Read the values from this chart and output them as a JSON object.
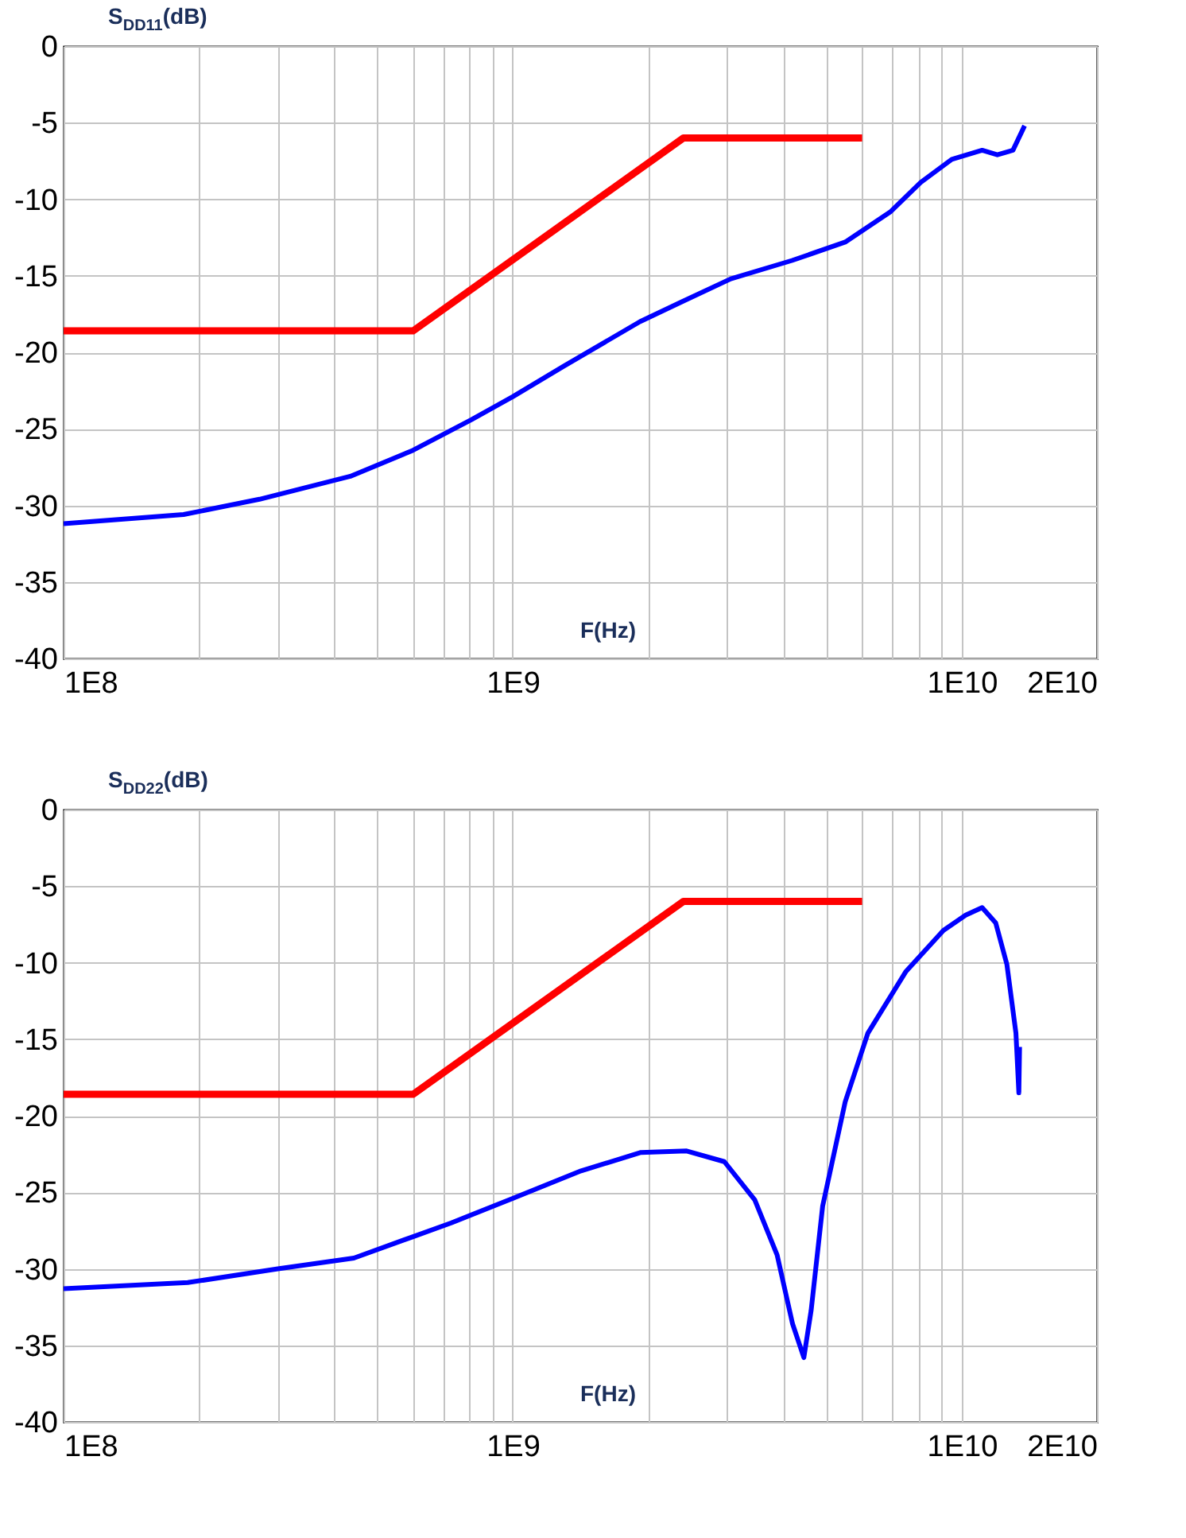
{
  "chart_data": [
    {
      "type": "line",
      "ylabel": "S$_{DD11}$(dB)",
      "xlabel": "F(Hz)",
      "log": "x",
      "grid": true,
      "line_style": "solid",
      "marker": "none",
      "xlim": [
        100000000.0,
        20000000000.0
      ],
      "ylim": [
        -40,
        0
      ],
      "yticks": [
        -40,
        -35,
        -30,
        -25,
        -20,
        -15,
        -10,
        -5,
        0
      ],
      "xticks": [
        {
          "value": 100000000.0,
          "label": "1E8"
        },
        {
          "value": 200000000.0,
          "label": null
        },
        {
          "value": 300000000.0,
          "label": null
        },
        {
          "value": 400000000.0,
          "label": null
        },
        {
          "value": 500000000.0,
          "label": null
        },
        {
          "value": 600000000.0,
          "label": null
        },
        {
          "value": 700000000.0,
          "label": null
        },
        {
          "value": 800000000.0,
          "label": null
        },
        {
          "value": 900000000.0,
          "label": null
        },
        {
          "value": 1000000000.0,
          "label": "1E9"
        },
        {
          "value": 2000000000.0,
          "label": null
        },
        {
          "value": 3000000000.0,
          "label": null
        },
        {
          "value": 4000000000.0,
          "label": null
        },
        {
          "value": 5000000000.0,
          "label": null
        },
        {
          "value": 6000000000.0,
          "label": null
        },
        {
          "value": 7000000000.0,
          "label": null
        },
        {
          "value": 8000000000.0,
          "label": null
        },
        {
          "value": 9000000000.0,
          "label": null
        },
        {
          "value": 10000000000.0,
          "label": "1E10"
        },
        {
          "value": 20000000000.0,
          "label": "2E10"
        }
      ],
      "series": [
        {
          "color": "#ff0000",
          "x": [
            100000000.0,
            600000000.0,
            2400000000.0,
            6000000000.0
          ],
          "values": [
            -18.6,
            -18.6,
            -6,
            -6
          ]
        },
        {
          "color": "#0000ff",
          "x": [
            100000000.0,
            185000000.0,
            273000000.0,
            435000000.0,
            600000000.0,
            810000000.0,
            1000000000.0,
            1300000000.0,
            1920000000.0,
            2380000000.0,
            3060000000.0,
            4190000000.0,
            5500000000.0,
            6950000000.0,
            8100000000.0,
            9500000000.0,
            11100000000.0,
            12000000000.0,
            13000000000.0,
            13800000000.0
          ],
          "values": [
            -31.2,
            -30.6,
            -29.6,
            -28.1,
            -26.4,
            -24.4,
            -22.9,
            -20.9,
            -18.0,
            -16.7,
            -15.2,
            -14.0,
            -12.8,
            -10.8,
            -8.9,
            -7.4,
            -6.8,
            -7.1,
            -6.8,
            -5.2
          ]
        }
      ]
    },
    {
      "type": "line",
      "ylabel": "S$_{DD22}$(dB)",
      "xlabel": "F(Hz)",
      "log": "x",
      "grid": true,
      "line_style": "solid",
      "marker": "none",
      "xlim": [
        100000000.0,
        20000000000.0
      ],
      "ylim": [
        -40,
        0
      ],
      "yticks": [
        -40,
        -35,
        -30,
        -25,
        -20,
        -15,
        -10,
        -5,
        0
      ],
      "xticks": [
        {
          "value": 100000000.0,
          "label": "1E8"
        },
        {
          "value": 200000000.0,
          "label": null
        },
        {
          "value": 300000000.0,
          "label": null
        },
        {
          "value": 400000000.0,
          "label": null
        },
        {
          "value": 500000000.0,
          "label": null
        },
        {
          "value": 600000000.0,
          "label": null
        },
        {
          "value": 700000000.0,
          "label": null
        },
        {
          "value": 800000000.0,
          "label": null
        },
        {
          "value": 900000000.0,
          "label": null
        },
        {
          "value": 1000000000.0,
          "label": "1E9"
        },
        {
          "value": 2000000000.0,
          "label": null
        },
        {
          "value": 3000000000.0,
          "label": null
        },
        {
          "value": 4000000000.0,
          "label": null
        },
        {
          "value": 5000000000.0,
          "label": null
        },
        {
          "value": 6000000000.0,
          "label": null
        },
        {
          "value": 7000000000.0,
          "label": null
        },
        {
          "value": 8000000000.0,
          "label": null
        },
        {
          "value": 9000000000.0,
          "label": null
        },
        {
          "value": 10000000000.0,
          "label": "1E10"
        },
        {
          "value": 20000000000.0,
          "label": "2E10"
        }
      ],
      "series": [
        {
          "color": "#ff0000",
          "x": [
            100000000.0,
            600000000.0,
            2400000000.0,
            6000000000.0
          ],
          "values": [
            -18.6,
            -18.6,
            -6,
            -6
          ]
        },
        {
          "color": "#0000ff",
          "x": [
            100000000.0,
            189000000.0,
            300000000.0,
            443000000.0,
            600000000.0,
            730000000.0,
            1000000000.0,
            1420000000.0,
            1930000000.0,
            2440000000.0,
            2960000000.0,
            3460000000.0,
            3880000000.0,
            4200000000.0,
            4450000000.0,
            4620000000.0,
            4900000000.0,
            5500000000.0,
            6180000000.0,
            7500000000.0,
            9100000000.0,
            10200000000.0,
            11100000000.0,
            11900000000.0,
            12600000000.0,
            13200000000.0,
            13400000000.0,
            13450000000.0
          ],
          "values": [
            -31.3,
            -30.9,
            -30.0,
            -29.3,
            -27.9,
            -27.0,
            -25.4,
            -23.6,
            -22.4,
            -22.3,
            -23.0,
            -25.5,
            -29.1,
            -33.6,
            -35.8,
            -32.7,
            -25.9,
            -19.1,
            -14.6,
            -10.6,
            -7.9,
            -6.9,
            -6.4,
            -7.4,
            -10.1,
            -14.6,
            -18.5,
            -15.5
          ]
        }
      ]
    }
  ]
}
